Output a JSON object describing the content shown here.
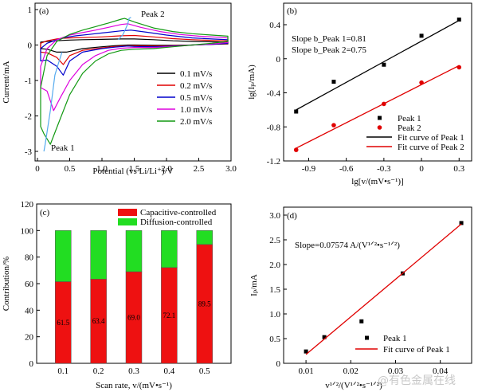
{
  "watermark": "@有色金属在线",
  "chart_data": [
    {
      "panel": "(a)",
      "type": "line",
      "xlabel": "Potential (vs Li/Li⁺)/V",
      "ylabel": "Current/mA",
      "xlim": [
        0,
        3.0
      ],
      "ylim": [
        -3,
        1
      ],
      "xticks": [
        "0",
        "0.5",
        "1.0",
        "1.5",
        "2.0",
        "2.5",
        "3.0"
      ],
      "yticks": [
        "1",
        "0",
        "-1",
        "-2",
        "-3"
      ],
      "annotations": [
        "Peak 2",
        "Peak 1"
      ],
      "legend_position": "center-right",
      "series": [
        {
          "name": "0.1 mV/s",
          "color": "#000000",
          "x": [
            0.05,
            0.15,
            0.3,
            0.4,
            0.5,
            0.7,
            1.0,
            1.3,
            1.5,
            1.8,
            2.1,
            2.4,
            2.7,
            2.95,
            2.95,
            2.7,
            2.4,
            2.1,
            1.8,
            1.5,
            1.4,
            1.2,
            1.0,
            0.7,
            0.45,
            0.3,
            0.15,
            0.05
          ],
          "y": [
            0.08,
            0.1,
            0.12,
            0.13,
            0.14,
            0.15,
            0.16,
            0.17,
            0.17,
            0.15,
            0.12,
            0.1,
            0.09,
            0.08,
            0.03,
            0.02,
            0.0,
            -0.01,
            -0.01,
            0.0,
            0.0,
            -0.02,
            -0.05,
            -0.1,
            -0.2,
            -0.2,
            -0.12,
            -0.1
          ]
        },
        {
          "name": "0.2 mV/s",
          "color": "#e00000",
          "x": [
            0.05,
            0.15,
            0.3,
            0.4,
            0.5,
            0.7,
            1.0,
            1.3,
            1.5,
            1.8,
            2.1,
            2.4,
            2.7,
            2.95,
            2.95,
            2.7,
            2.4,
            2.1,
            1.8,
            1.5,
            1.4,
            1.2,
            1.0,
            0.7,
            0.5,
            0.4,
            0.3,
            0.15,
            0.05
          ],
          "y": [
            0.05,
            0.12,
            0.17,
            0.19,
            0.2,
            0.21,
            0.23,
            0.26,
            0.27,
            0.23,
            0.18,
            0.15,
            0.13,
            0.12,
            0.04,
            0.02,
            0.0,
            -0.02,
            -0.03,
            -0.02,
            -0.02,
            -0.04,
            -0.08,
            -0.15,
            -0.3,
            -0.55,
            -0.35,
            -0.22,
            -0.2
          ]
        },
        {
          "name": "0.5 mV/s",
          "color": "#0000cc",
          "x": [
            0.05,
            0.15,
            0.3,
            0.45,
            0.6,
            0.8,
            1.0,
            1.3,
            1.45,
            1.7,
            2.0,
            2.4,
            2.7,
            2.95,
            2.95,
            2.7,
            2.4,
            2.1,
            1.8,
            1.5,
            1.4,
            1.2,
            1.0,
            0.7,
            0.5,
            0.4,
            0.3,
            0.15,
            0.05
          ],
          "y": [
            -0.1,
            0.05,
            0.15,
            0.22,
            0.26,
            0.3,
            0.34,
            0.4,
            0.42,
            0.36,
            0.28,
            0.2,
            0.17,
            0.15,
            0.05,
            0.02,
            0.0,
            -0.03,
            -0.05,
            -0.04,
            -0.03,
            -0.06,
            -0.1,
            -0.2,
            -0.45,
            -0.85,
            -0.6,
            -0.42,
            -0.45
          ]
        },
        {
          "name": "1.0 mV/s",
          "color": "#dd00dd",
          "x": [
            0.05,
            0.15,
            0.3,
            0.5,
            0.7,
            0.9,
            1.1,
            1.3,
            1.4,
            1.6,
            1.9,
            2.2,
            2.5,
            2.8,
            2.95,
            2.95,
            2.7,
            2.4,
            2.1,
            1.8,
            1.5,
            1.3,
            1.1,
            0.9,
            0.7,
            0.5,
            0.35,
            0.25,
            0.15,
            0.05
          ],
          "y": [
            -0.6,
            -0.1,
            0.15,
            0.28,
            0.35,
            0.42,
            0.5,
            0.58,
            0.6,
            0.5,
            0.38,
            0.3,
            0.25,
            0.22,
            0.2,
            0.07,
            0.03,
            0.0,
            -0.04,
            -0.07,
            -0.07,
            -0.09,
            -0.15,
            -0.3,
            -0.55,
            -1.0,
            -1.5,
            -1.85,
            -1.3,
            -1.2
          ]
        },
        {
          "name": "2.0 mV/s",
          "color": "#119911",
          "x": [
            0.05,
            0.15,
            0.3,
            0.5,
            0.7,
            0.9,
            1.1,
            1.3,
            1.35,
            1.5,
            1.8,
            2.1,
            2.4,
            2.7,
            2.95,
            2.95,
            2.7,
            2.4,
            2.1,
            1.8,
            1.5,
            1.3,
            1.1,
            0.9,
            0.7,
            0.5,
            0.35,
            0.2,
            0.1,
            0.05
          ],
          "y": [
            -1.2,
            -0.3,
            0.1,
            0.3,
            0.42,
            0.52,
            0.62,
            0.73,
            0.75,
            0.65,
            0.48,
            0.38,
            0.32,
            0.28,
            0.25,
            0.1,
            0.05,
            0.0,
            -0.05,
            -0.1,
            -0.12,
            -0.15,
            -0.25,
            -0.45,
            -0.8,
            -1.4,
            -2.1,
            -2.8,
            -2.5,
            -2.3
          ]
        }
      ],
      "peak_markers": {
        "color": "#55aaee",
        "peak2": {
          "x": [
            1.25,
            1.32,
            1.36,
            1.4,
            1.42,
            1.45
          ],
          "y": [
            0.15,
            0.28,
            0.43,
            0.6,
            0.75,
            0.78
          ]
        },
        "peak1": {
          "x": [
            0.38,
            0.32,
            0.27,
            0.2,
            0.12,
            0.1
          ],
          "y": [
            -0.2,
            -0.55,
            -0.85,
            -1.85,
            -2.8,
            -3.0
          ]
        }
      }
    },
    {
      "panel": "(b)",
      "type": "scatter",
      "xlabel": "lg[v/(mV•s⁻¹)]",
      "ylabel": "lg(Iₚ/mA)",
      "xlim": [
        -1.1,
        0.4
      ],
      "ylim": [
        -1.2,
        0.55
      ],
      "xticks": [
        "-0.9",
        "-0.6",
        "-0.3",
        "0",
        "0.3"
      ],
      "yticks": [
        "0.4",
        "0",
        "-0.4",
        "-0.8",
        "-1.2"
      ],
      "annotations": [
        "Slope b_Peak 1=0.81",
        "Slope b_Peak 2=0.75"
      ],
      "legend_position": "lower-right",
      "series": [
        {
          "name": "Peak 1",
          "color": "#000000",
          "marker": "square",
          "x": [
            -1.0,
            -0.7,
            -0.3,
            0.0,
            0.3
          ],
          "y": [
            -0.62,
            -0.27,
            -0.07,
            0.27,
            0.46
          ]
        },
        {
          "name": "Peak 2",
          "color": "#e00000",
          "marker": "circle",
          "x": [
            -1.0,
            -0.7,
            -0.3,
            0.0,
            0.3
          ],
          "y": [
            -1.07,
            -0.78,
            -0.53,
            -0.28,
            -0.1
          ]
        },
        {
          "name": "Fit curve of Peak 1",
          "color": "#000000",
          "marker": "line",
          "x": [
            -1.0,
            0.3
          ],
          "y": [
            -0.6,
            0.45
          ]
        },
        {
          "name": "Fit curve of Peak 2",
          "color": "#e00000",
          "marker": "line",
          "x": [
            -1.0,
            0.3
          ],
          "y": [
            -1.05,
            -0.08
          ]
        }
      ]
    },
    {
      "panel": "(c)",
      "type": "bar",
      "stacked": true,
      "xlabel": "Scan rate, v/(mV•s⁻¹)",
      "ylabel": "Contribution/%",
      "ylim": [
        0,
        120
      ],
      "yticks": [
        "120",
        "100",
        "80",
        "60",
        "40",
        "20",
        "0"
      ],
      "categories": [
        "0.1",
        "0.2",
        "0.3",
        "0.4",
        "0.5"
      ],
      "legend_position": "top",
      "series": [
        {
          "name": "Capacitive-controlled",
          "color": "#ee1111",
          "values": [
            61.5,
            63.4,
            69.0,
            72.1,
            89.5
          ],
          "labels": [
            "61.5",
            "63.4",
            "69.0",
            "72.1",
            "89.5"
          ]
        },
        {
          "name": "Diffusion-controlled",
          "color": "#22dd22",
          "values": [
            38.5,
            36.6,
            31.0,
            27.9,
            10.5
          ]
        }
      ]
    },
    {
      "panel": "(d)",
      "type": "scatter",
      "xlabel": "v¹ᐟ²/(V¹ᐟ²•s⁻¹ᐟ²)",
      "ylabel": "Iₚ/mA",
      "xlim": [
        0.005,
        0.047
      ],
      "ylim": [
        0,
        3.0
      ],
      "xticks": [
        "0.01",
        "0.02",
        "0.03",
        "0.04"
      ],
      "yticks": [
        "3.0",
        "2.5",
        "2.0",
        "1.5",
        "1.0",
        "0.5",
        "0"
      ],
      "annotations": [
        "Slope=0.07574 A/(V¹ᐟ²•s⁻¹ᐟ²)"
      ],
      "legend_position": "lower-right",
      "series": [
        {
          "name": "Peak 1",
          "color": "#000000",
          "marker": "square",
          "x": [
            0.01,
            0.0141,
            0.0224,
            0.0316,
            0.0447
          ],
          "y": [
            0.24,
            0.53,
            0.85,
            1.82,
            2.84
          ]
        },
        {
          "name": "Fit curve of Peak 1",
          "color": "#e00000",
          "marker": "line",
          "x": [
            0.01,
            0.0447
          ],
          "y": [
            0.18,
            2.82
          ]
        }
      ]
    }
  ]
}
